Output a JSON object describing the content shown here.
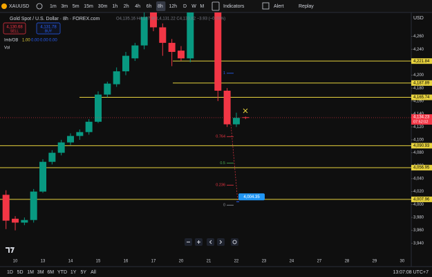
{
  "toolbar": {
    "symbol": "XAUUSD",
    "intervals": [
      "1m",
      "3m",
      "5m",
      "15m",
      "30m",
      "1h",
      "2h",
      "4h",
      "6h",
      "8h",
      "12h",
      "D",
      "W",
      "M"
    ],
    "active_interval": 9,
    "indicators": "Indicators",
    "alert": "Alert",
    "replay": "Replay"
  },
  "legend": {
    "title": "Gold Spot / U.S. Dollar · 8h · FOREX.com",
    "ohlc": "O4,135.16 H4,137.88 L4,131.22 C4,133.82 −3.93 (−0.09%)",
    "sell_price": "4,130.68",
    "sell": "SELL",
    "buy_price": "4,131.78",
    "buy": "BUY",
    "indicator": "Imb/OB",
    "indicator_values": [
      "1.00",
      "0.00",
      "0.00",
      "0.00"
    ],
    "volume": "Vol"
  },
  "footer": {
    "ranges": [
      "1D",
      "5D",
      "1M",
      "3M",
      "6M",
      "YTD",
      "1Y",
      "5Y",
      "All"
    ],
    "clock": "13:07:08 UTC+7"
  },
  "chart_data": {
    "type": "candlestick",
    "currency": "USD",
    "categories": [
      null,
      "10",
      null,
      null,
      "13",
      null,
      null,
      "14",
      null,
      null,
      "15",
      null,
      null,
      "16",
      null,
      null,
      "17",
      null,
      null,
      "20",
      null,
      null,
      "21",
      null,
      null,
      "22",
      null,
      null,
      "23",
      null,
      null,
      "24",
      null,
      null,
      "27",
      null,
      null,
      "28",
      null,
      null,
      "29",
      null,
      null,
      "30"
    ],
    "open": [
      4015,
      3978,
      3972,
      3976,
      4020,
      4066,
      4080,
      4096,
      4106,
      4112,
      4128,
      4170,
      4186,
      4206,
      4226,
      4246,
      4297,
      4274,
      4250,
      4238,
      4226,
      null,
      null,
      4297,
      4176,
      4124,
      4135,
      null,
      null,
      null,
      null,
      null,
      null,
      null,
      null,
      null,
      null,
      null,
      null,
      null,
      null,
      null,
      null,
      null
    ],
    "high": [
      4022,
      3982,
      3980,
      4024,
      4070,
      4084,
      4100,
      4110,
      4116,
      4132,
      4175,
      4190,
      4212,
      4236,
      4250,
      4297,
      4297,
      4280,
      4256,
      4245,
      4297,
      null,
      null,
      4297,
      4180,
      4142,
      4136,
      null,
      null,
      null,
      null,
      null,
      null,
      null,
      null,
      null,
      null,
      null,
      null,
      null,
      null,
      null,
      null,
      null
    ],
    "low": [
      3962,
      3960,
      3968,
      3972,
      4018,
      4062,
      4076,
      4092,
      4100,
      4108,
      4126,
      4166,
      4182,
      4200,
      4222,
      4240,
      4268,
      4230,
      4214,
      4222,
      4220,
      null,
      null,
      4160,
      4120,
      4120,
      4132,
      null,
      null,
      null,
      null,
      null,
      null,
      null,
      null,
      null,
      null,
      null,
      null,
      null,
      null,
      null,
      null,
      null
    ],
    "close": [
      3975,
      3972,
      3976,
      4020,
      4066,
      4080,
      4096,
      4106,
      4112,
      4128,
      4170,
      4187,
      4206,
      4230,
      4246,
      4290,
      4274,
      4250,
      4236,
      4226,
      4297,
      null,
      null,
      4176,
      4124,
      4134,
      4134,
      null,
      null,
      null,
      null,
      null,
      null,
      null,
      null,
      null,
      null,
      null,
      null,
      null,
      null,
      null,
      null,
      null
    ],
    "up_color": "#089981",
    "down_color": "#f23645",
    "ylim": [
      3920,
      4297
    ],
    "yticks": [
      {
        "value": 3940,
        "label": "3,940"
      },
      {
        "value": 3960,
        "label": "3,960"
      },
      {
        "value": 3980,
        "label": "3,980"
      },
      {
        "value": 4000,
        "label": "4,000"
      },
      {
        "value": 4020,
        "label": "4,020"
      },
      {
        "value": 4040,
        "label": "4,040"
      },
      {
        "value": 4060,
        "label": "4,060"
      },
      {
        "value": 4080,
        "label": "4,080"
      },
      {
        "value": 4100,
        "label": "4,100"
      },
      {
        "value": 4120,
        "label": "4,120"
      },
      {
        "value": 4140,
        "label": "4,140"
      },
      {
        "value": 4160,
        "label": "4,160"
      },
      {
        "value": 4180,
        "label": "4,180"
      },
      {
        "value": 4200,
        "label": "4,200"
      },
      {
        "value": 4220,
        "label": "4,220"
      },
      {
        "value": 4240,
        "label": "4,240"
      },
      {
        "value": 4260,
        "label": "4,260"
      }
    ],
    "grid": false,
    "levels": [
      {
        "value": 4221.84,
        "label": "4,221.84"
      },
      {
        "value": 4187.89,
        "label": "4,187.89"
      },
      {
        "value": 4165.74,
        "label": "4,165.74"
      },
      {
        "value": 4090.93,
        "label": "4,090.93"
      },
      {
        "value": 4056.95,
        "label": "4,056.95"
      },
      {
        "value": 4007.96,
        "label": "4,007.96"
      }
    ],
    "level_color": "#e8d33f",
    "last_price": {
      "value": 4134.23,
      "label": "4,134.23"
    },
    "countdown": "07:52:02",
    "fib": [
      {
        "label": "1",
        "value": 4203,
        "color": "#2962ff"
      },
      {
        "label": "0.764",
        "value": 4105,
        "color": "#f23645"
      },
      {
        "label": "0.5",
        "value": 4064,
        "color": "#4caf50"
      },
      {
        "label": "0.236",
        "value": 4030,
        "color": "#f23645"
      },
      {
        "label": "0",
        "value": 3999,
        "color": "#9598a1"
      }
    ],
    "target": {
      "value": 4004.35,
      "label": "4,004.35"
    }
  }
}
